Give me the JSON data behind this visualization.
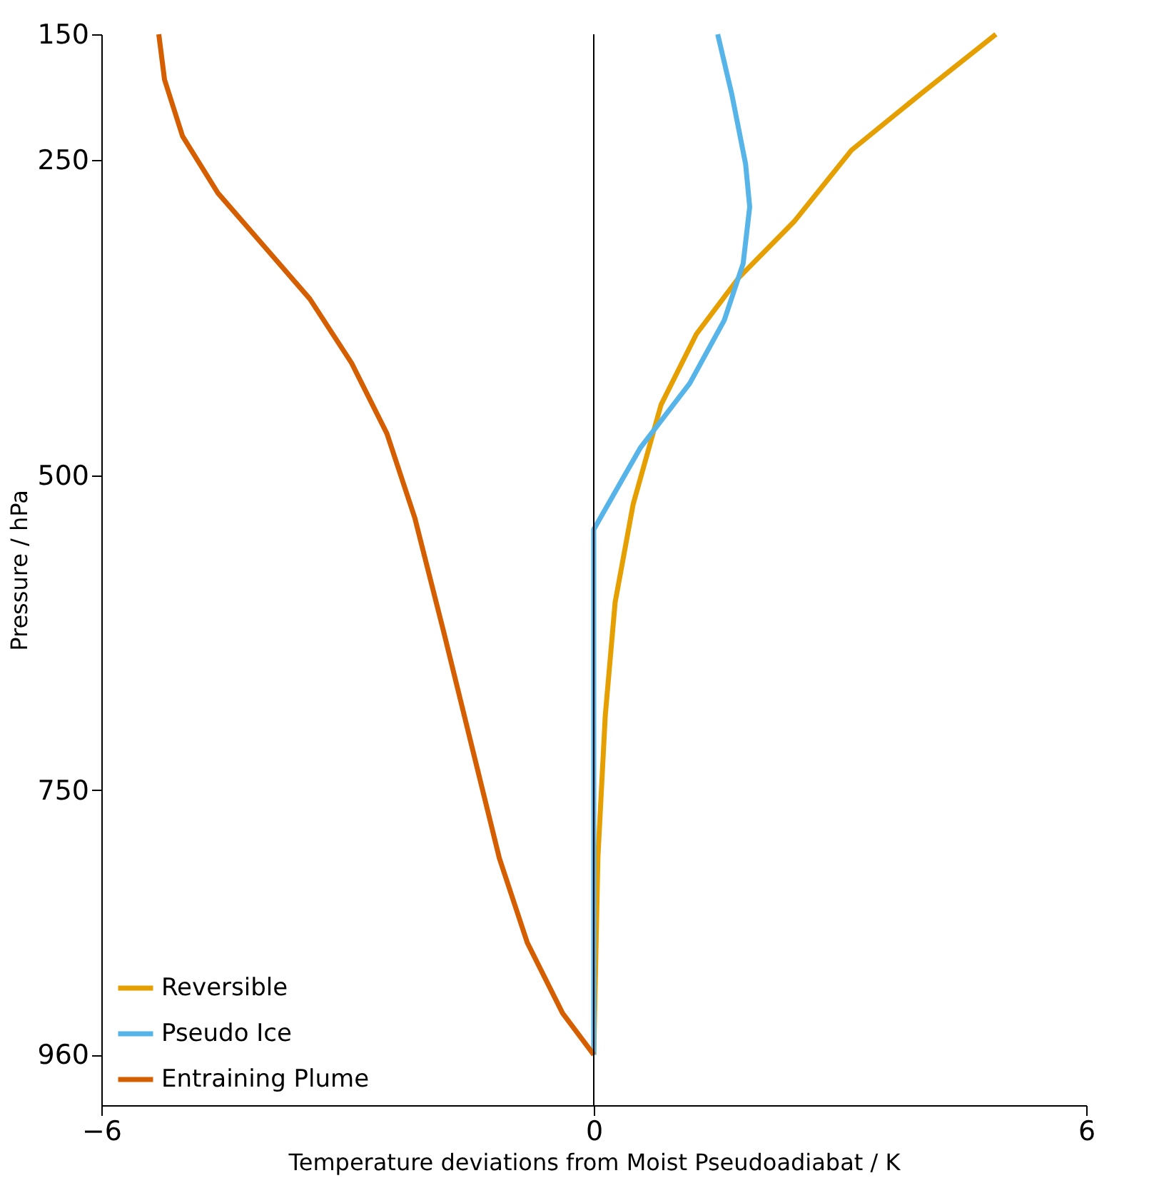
{
  "chart_data": {
    "type": "line",
    "xlabel": "Temperature deviations from Moist Pseudoadiabat / K",
    "ylabel": "Pressure / hPa",
    "xlim": [
      -6,
      6
    ],
    "xticks": [
      -6,
      0,
      6
    ],
    "ylim": [
      1000,
      150
    ],
    "yticks": [
      150,
      250,
      500,
      750,
      960
    ],
    "grid": false,
    "legend": "bottom left",
    "line_style": "solid",
    "marker": "none",
    "ref_lines": [
      {
        "axis": "x",
        "value": 0,
        "color": "#000000"
      }
    ],
    "series": [
      {
        "name": "Reversible",
        "color": "#e69f00",
        "x": [
          4.9,
          3.99,
          3.14,
          2.45,
          1.77,
          1.25,
          0.82,
          0.48,
          0.26,
          0.14,
          0.05,
          0
        ],
        "values": [
          150,
          197,
          242,
          298,
          343,
          388,
          444,
          523,
          601,
          691,
          804,
          960
        ]
      },
      {
        "name": "Pseudo Ice",
        "color": "#56b4e9",
        "x": [
          1.51,
          1.68,
          1.85,
          1.9,
          1.82,
          1.59,
          1.17,
          0.57,
          0,
          0
        ],
        "values": [
          150,
          197,
          253,
          287,
          332,
          377,
          427,
          478,
          543,
          960
        ]
      },
      {
        "name": "Entraining Plume",
        "color": "#d55e00",
        "x": [
          -5.3,
          -5.23,
          -5.01,
          -4.58,
          -3.98,
          -3.46,
          -2.95,
          -2.52,
          -2.18,
          -1.83,
          -1.49,
          -1.15,
          -0.81,
          -0.38,
          0
        ],
        "values": [
          150,
          186,
          231,
          276,
          321,
          360,
          411,
          467,
          534,
          624,
          714,
          804,
          871,
          927,
          960
        ]
      }
    ]
  }
}
